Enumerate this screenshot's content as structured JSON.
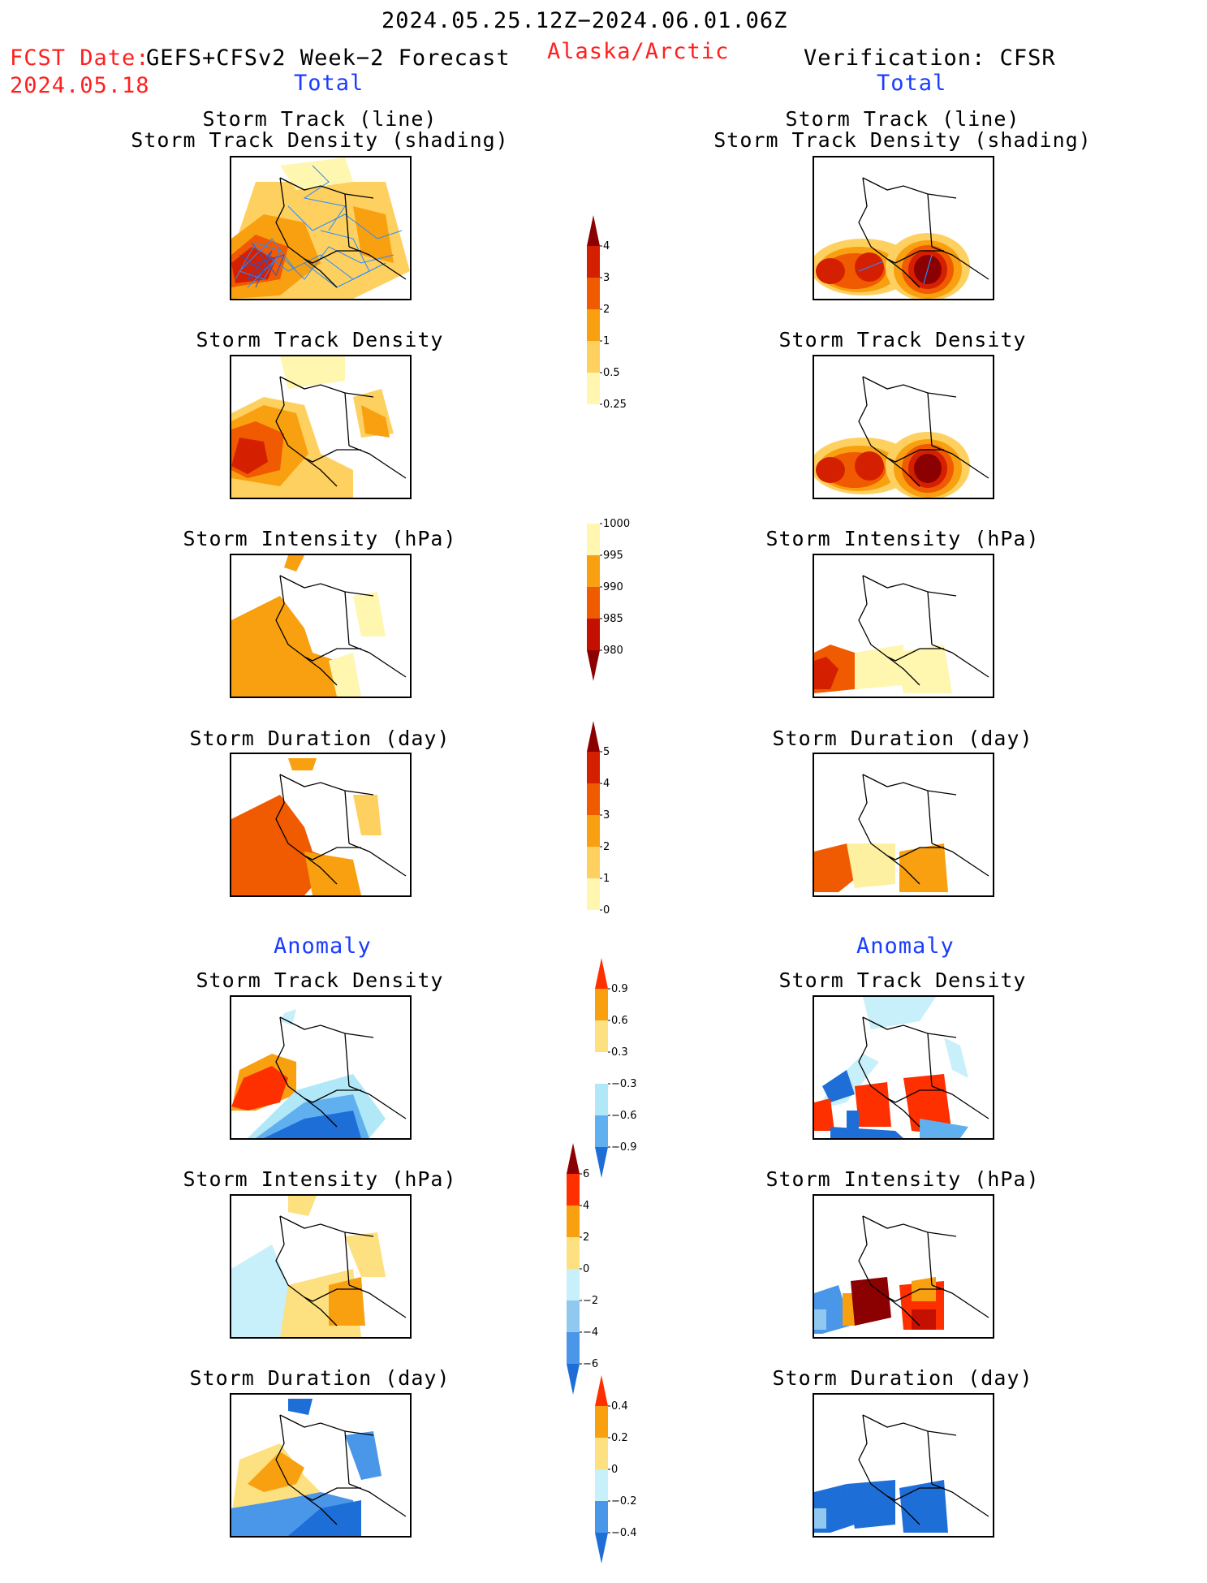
{
  "header": {
    "date_range": "2024.05.25.12Z−2024.06.01.06Z",
    "fcst_label": "FCST Date:",
    "forecast_name": "GEFS+CFSv2 Week−2 Forecast",
    "fcst_date": "2024.05.18",
    "region": "Alaska/Arctic",
    "verification": "Verification: CFSR"
  },
  "sections": {
    "total_left": "Total",
    "total_right": "Total",
    "anomaly_left": "Anomaly",
    "anomaly_right": "Anomaly"
  },
  "panel_titles": {
    "track_line": "Storm Track (line)",
    "track_shading": "Storm Track Density (shading)",
    "density": "Storm Track Density",
    "intensity": "Storm Intensity (hPa)",
    "duration": "Storm Duration (day)"
  },
  "colorbars": {
    "density": {
      "ticks": [
        "4",
        "3",
        "2",
        "1",
        "0.5",
        "0.25"
      ],
      "colors": [
        "#8b0000",
        "#d42000",
        "#f05a00",
        "#f8a010",
        "#fdd060",
        "#fff6b0"
      ]
    },
    "intensity": {
      "ticks": [
        "1000",
        "995",
        "990",
        "985",
        "980"
      ],
      "colors": [
        "#fff6b0",
        "#f8a010",
        "#f05a00",
        "#c41000",
        "#8b0000"
      ]
    },
    "duration": {
      "ticks": [
        "5",
        "4",
        "3",
        "2",
        "1",
        "0"
      ],
      "colors": [
        "#8b0000",
        "#d42000",
        "#f05a00",
        "#f8a010",
        "#fdd060",
        "#fff6b0"
      ]
    },
    "anom_density": {
      "ticks": [
        "0.9",
        "0.6",
        "0.3",
        "−0.3",
        "−0.6",
        "−0.9"
      ],
      "colors": [
        "#ff3000",
        "#f8a010",
        "#fde080",
        "#ffffff",
        "#b0e8f8",
        "#60b0f0",
        "#1e6ed8"
      ]
    },
    "anom_intensity": {
      "ticks": [
        "6",
        "4",
        "2",
        "0",
        "−2",
        "−4",
        "−6"
      ],
      "colors": [
        "#8b0000",
        "#ff3000",
        "#f8a010",
        "#fde080",
        "#c8f0fa",
        "#90c8f0",
        "#4a96e8",
        "#1e6ed8"
      ]
    },
    "anom_duration": {
      "ticks": [
        "0.4",
        "0.2",
        "0",
        "−0.2",
        "−0.4"
      ],
      "colors": [
        "#ff3000",
        "#f8a010",
        "#fde080",
        "#c8f0fa",
        "#4a96e8",
        "#1e6ed8"
      ]
    }
  },
  "map_colors": {
    "coast": "#000000",
    "track_line": "#2a8cff"
  }
}
